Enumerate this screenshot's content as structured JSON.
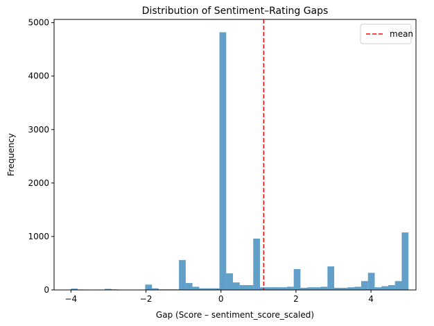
{
  "chart_data": {
    "type": "bar",
    "title": "Distribution of Sentiment–Rating Gaps",
    "xlabel": "Gap (Score – sentiment_score_scaled)",
    "ylabel": "Frequency",
    "xlim": [
      -4.45,
      5.2
    ],
    "ylim": [
      0,
      5060
    ],
    "xticks": [
      -4,
      -2,
      0,
      2,
      4
    ],
    "yticks": [
      0,
      1000,
      2000,
      3000,
      4000,
      5000
    ],
    "bin_width": 0.18,
    "bin_start": -4.0,
    "values": [
      25,
      8,
      5,
      5,
      5,
      20,
      10,
      5,
      5,
      5,
      5,
      100,
      30,
      10,
      10,
      10,
      560,
      130,
      60,
      30,
      30,
      30,
      4820,
      310,
      140,
      90,
      90,
      960,
      50,
      50,
      50,
      50,
      60,
      390,
      40,
      50,
      50,
      60,
      440,
      40,
      40,
      50,
      60,
      165,
      320,
      50,
      70,
      90,
      165,
      1075
    ],
    "mean": 1.14,
    "bar_color": "#1f77b4",
    "bar_opacity": 0.7,
    "mean_color": "#ff0000",
    "legend": {
      "label": "mean",
      "position": "upper right"
    },
    "grid": false
  }
}
